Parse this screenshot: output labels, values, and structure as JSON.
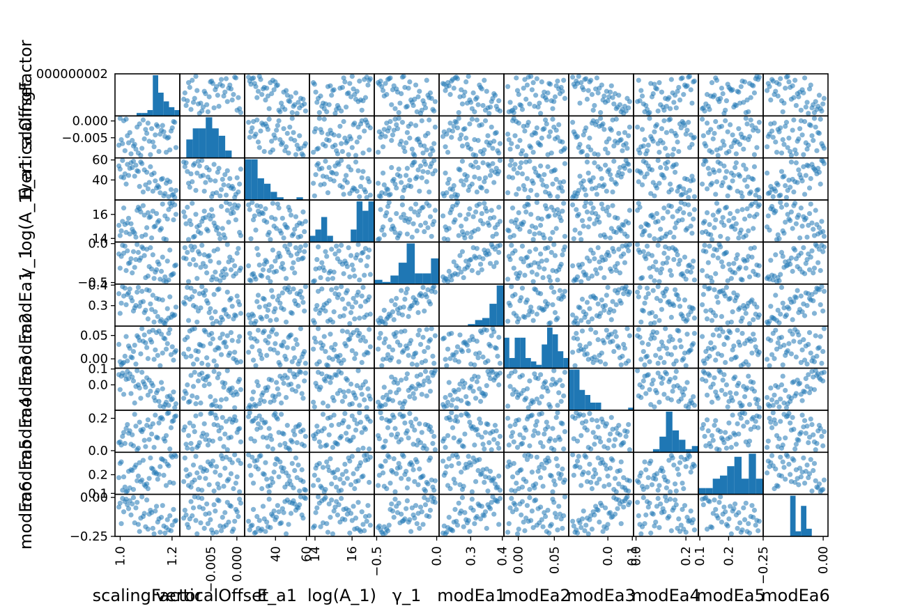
{
  "chart_data": {
    "type": "scatter",
    "variables": [
      {
        "label": "scalingFactor",
        "range": [
          0.98,
          1.23
        ],
        "ticks": [
          {
            "v": 1.0,
            "t": "1.0"
          },
          {
            "v": 1.2,
            "t": "1.2"
          }
        ],
        "ytick_labels": [],
        "xtick_labels": [
          {
            "v": 1.0,
            "t": "1.0"
          },
          {
            "v": 1.2,
            "t": "1.2"
          }
        ]
      },
      {
        "label": "verticalOffset",
        "range": [
          -0.011,
          0.0015
        ],
        "ytick_labels": [
          {
            "v": 0.0,
            "t": "0.000"
          },
          {
            "v": -0.005,
            "t": "−0.005"
          }
        ],
        "xtick_labels": [
          {
            "v": -0.005,
            "t": "−0.005"
          },
          {
            "v": 0.0,
            "t": "0.000"
          }
        ]
      },
      {
        "label": "E_a1",
        "range": [
          20,
          62
        ],
        "ytick_labels": [
          {
            "v": 60,
            "t": "60"
          },
          {
            "v": 40,
            "t": "40"
          }
        ],
        "xtick_labels": [
          {
            "v": 40,
            "t": "40"
          },
          {
            "v": 60,
            "t": "60"
          }
        ]
      },
      {
        "label": "log(A_1)",
        "range": [
          13.7,
          17.2
        ],
        "ytick_labels": [
          {
            "v": 16,
            "t": "16"
          },
          {
            "v": 14,
            "t": "14"
          }
        ],
        "xtick_labels": [
          {
            "v": 14,
            "t": "14"
          },
          {
            "v": 16,
            "t": "16"
          }
        ]
      },
      {
        "label": "γ_1",
        "range": [
          -0.52,
          0.02
        ],
        "ytick_labels": [
          {
            "v": 0.0,
            "t": "0.0"
          },
          {
            "v": -0.5,
            "t": "−0.5"
          }
        ],
        "xtick_labels": [
          {
            "v": -0.5,
            "t": "−0.5"
          },
          {
            "v": 0.0,
            "t": "0.0"
          }
        ]
      },
      {
        "label": "modEa1",
        "range": [
          0.2,
          0.405
        ],
        "ytick_labels": [
          {
            "v": 0.4,
            "t": "0.4"
          },
          {
            "v": 0.3,
            "t": "0.3"
          }
        ],
        "xtick_labels": [
          {
            "v": 0.3,
            "t": "0.3"
          },
          {
            "v": 0.4,
            "t": "0.4"
          }
        ]
      },
      {
        "label": "modEa2",
        "range": [
          -0.02,
          0.07
        ],
        "ytick_labels": [
          {
            "v": 0.05,
            "t": "0.05"
          },
          {
            "v": 0.0,
            "t": "0.00"
          }
        ],
        "xtick_labels": [
          {
            "v": 0.0,
            "t": "0.00"
          },
          {
            "v": 0.05,
            "t": "0.05"
          }
        ]
      },
      {
        "label": "modEa3",
        "range": [
          -0.16,
          0.105
        ],
        "ytick_labels": [
          {
            "v": 0.1,
            "t": "0.1"
          },
          {
            "v": 0.0,
            "t": "0.0"
          }
        ],
        "xtick_labels": [
          {
            "v": 0.0,
            "t": "0.0"
          },
          {
            "v": 0.1,
            "t": "0.1"
          }
        ]
      },
      {
        "label": "modEa4",
        "range": [
          -0.01,
          0.25
        ],
        "ytick_labels": [
          {
            "v": 0.2,
            "t": "0.2"
          },
          {
            "v": 0.0,
            "t": "0.0"
          }
        ],
        "xtick_labels": [
          {
            "v": 0.0,
            "t": "0.0"
          },
          {
            "v": 0.2,
            "t": "0.2"
          }
        ]
      },
      {
        "label": "modEa5",
        "range": [
          0.095,
          0.32
        ],
        "ytick_labels": [
          {
            "v": 0.2,
            "t": "0.2"
          },
          {
            "v": 0.1,
            "t": "0.1"
          }
        ],
        "xtick_labels": [
          {
            "v": 0.1,
            "t": "0.1"
          },
          {
            "v": 0.2,
            "t": "0.2"
          }
        ]
      },
      {
        "label": "modEa6",
        "range": [
          -0.25,
          0.02
        ],
        "ytick_labels": [
          {
            "v": 0.0,
            "t": "0.00"
          },
          {
            "v": -0.25,
            "t": "−0.25"
          }
        ],
        "xtick_labels": [
          {
            "v": -0.25,
            "t": "−0.25"
          },
          {
            "v": 0.0,
            "t": "0.00"
          }
        ]
      }
    ],
    "top_axis_artifact_tick": "000000002",
    "correlations": [
      [
        0,
        1,
        -0.2
      ],
      [
        0,
        2,
        -0.75
      ],
      [
        0,
        3,
        0.5
      ],
      [
        0,
        4,
        -0.5
      ],
      [
        0,
        5,
        -0.7
      ],
      [
        0,
        6,
        0.0
      ],
      [
        0,
        7,
        -0.8
      ],
      [
        0,
        8,
        0.55
      ],
      [
        0,
        9,
        0.6
      ],
      [
        0,
        10,
        -0.75
      ],
      [
        1,
        2,
        -0.5
      ],
      [
        1,
        3,
        0.0
      ],
      [
        1,
        4,
        -0.3
      ],
      [
        1,
        5,
        -0.2
      ],
      [
        1,
        6,
        0.0
      ],
      [
        1,
        7,
        0.0
      ],
      [
        1,
        8,
        -0.1
      ],
      [
        1,
        9,
        0.0
      ],
      [
        1,
        10,
        0.2
      ],
      [
        2,
        3,
        -0.2
      ],
      [
        2,
        4,
        0.85
      ],
      [
        2,
        5,
        0.7
      ],
      [
        2,
        6,
        -0.1
      ],
      [
        2,
        7,
        0.8
      ],
      [
        2,
        8,
        -0.3
      ],
      [
        2,
        9,
        -0.4
      ],
      [
        2,
        10,
        0.7
      ],
      [
        3,
        4,
        0.3
      ],
      [
        3,
        5,
        -0.1
      ],
      [
        3,
        6,
        0.0
      ],
      [
        3,
        7,
        -0.3
      ],
      [
        3,
        8,
        0.3
      ],
      [
        3,
        9,
        0.5
      ],
      [
        3,
        10,
        -0.5
      ],
      [
        4,
        5,
        0.8
      ],
      [
        4,
        6,
        0.0
      ],
      [
        4,
        7,
        0.8
      ],
      [
        4,
        8,
        -0.2
      ],
      [
        4,
        9,
        -0.2
      ],
      [
        4,
        10,
        0.6
      ],
      [
        5,
        6,
        0.1
      ],
      [
        5,
        7,
        0.85
      ],
      [
        5,
        8,
        -0.3
      ],
      [
        5,
        9,
        -0.4
      ],
      [
        5,
        10,
        0.75
      ],
      [
        6,
        7,
        0.2
      ],
      [
        6,
        8,
        -0.1
      ],
      [
        6,
        9,
        0.0
      ],
      [
        6,
        10,
        0.0
      ],
      [
        7,
        8,
        -0.5
      ],
      [
        7,
        9,
        -0.5
      ],
      [
        7,
        10,
        0.85
      ],
      [
        8,
        9,
        0.4
      ],
      [
        8,
        10,
        -0.3
      ],
      [
        9,
        10,
        -0.5
      ]
    ],
    "histograms": [
      [
        0,
        0,
        0,
        0,
        1,
        1,
        2,
        14,
        8,
        5,
        3,
        2
      ],
      [
        0,
        5,
        8,
        8,
        11,
        8,
        6,
        2,
        0,
        0
      ],
      [
        15,
        15,
        8,
        6,
        3,
        1,
        0,
        0,
        1,
        0
      ],
      [
        2,
        4,
        8,
        2,
        0,
        0,
        0,
        4,
        13,
        10,
        13
      ],
      [
        2,
        1,
        4,
        10,
        19,
        5,
        5,
        12
      ],
      [
        0,
        0,
        0,
        0,
        1,
        3,
        4,
        11,
        20
      ],
      [
        9,
        3,
        9,
        9,
        3,
        2,
        1,
        7,
        12,
        10,
        5,
        3
      ],
      [
        16,
        16,
        8,
        6,
        3,
        3,
        0,
        0,
        0,
        0,
        0,
        1
      ],
      [
        0,
        0,
        0,
        1,
        5,
        13,
        7,
        4,
        1,
        2
      ],
      [
        2,
        2,
        5,
        6,
        9,
        12,
        5,
        13,
        5
      ],
      [
        0,
        0,
        0,
        0,
        0,
        16,
        2,
        12,
        3,
        0,
        0,
        0
      ]
    ],
    "xlabel": "",
    "ylabel": "",
    "title": "",
    "grid": false,
    "marker_color": "#1f77b4"
  }
}
